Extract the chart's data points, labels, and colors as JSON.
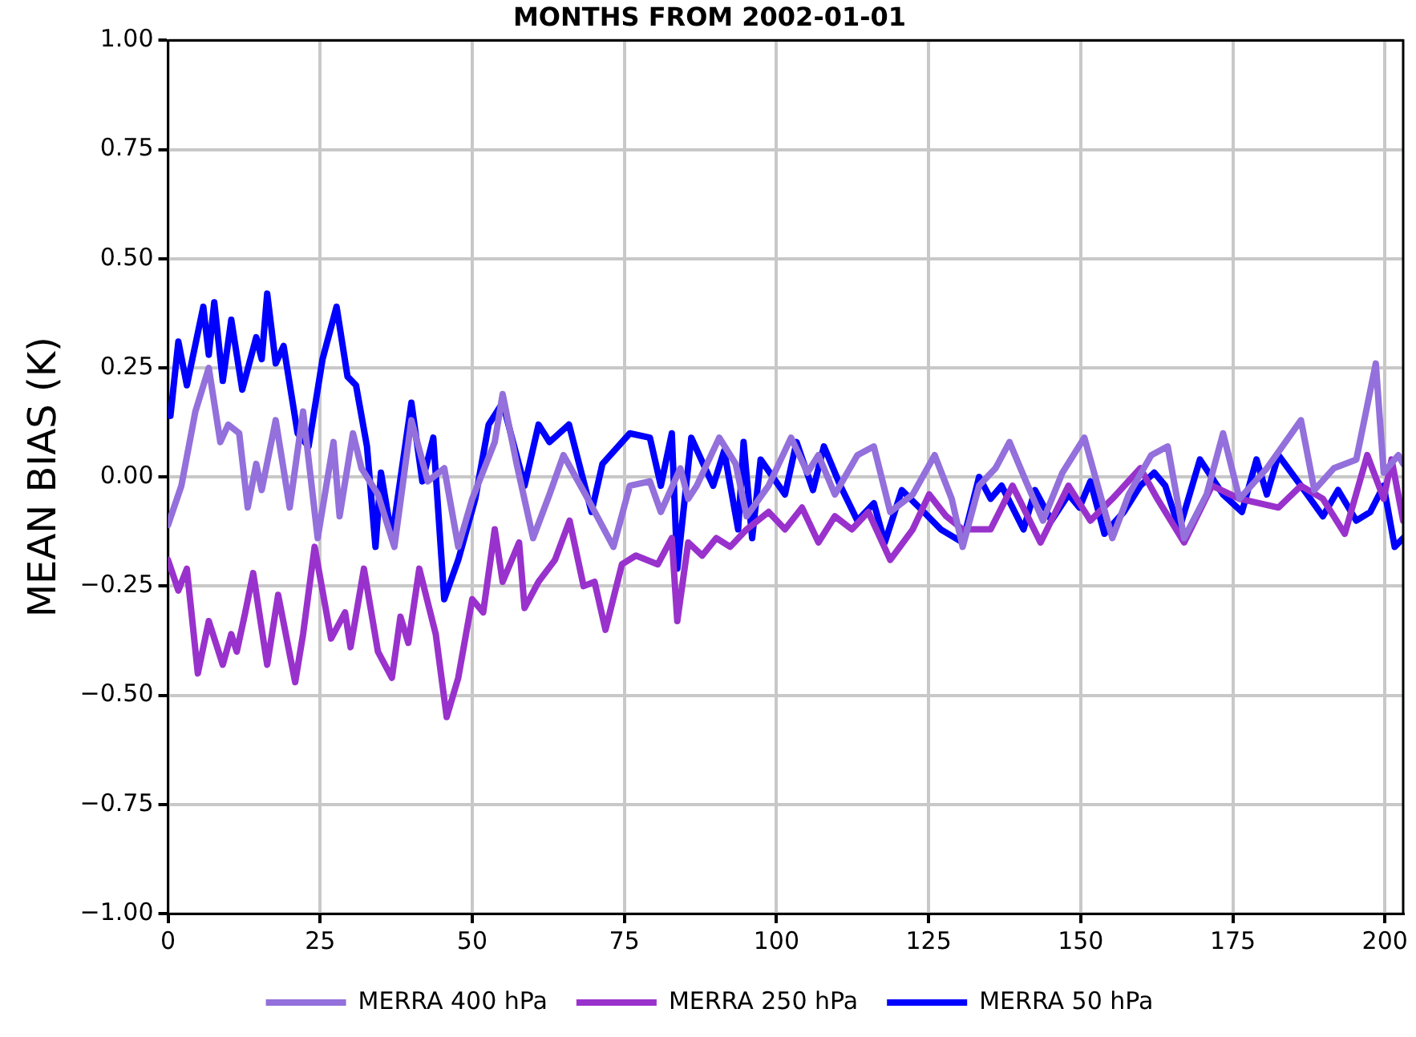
{
  "chart_data": {
    "type": "line",
    "title": "MONTHS FROM 2002-01-01",
    "ylabel": "MEAN BIAS (K)",
    "xlim": [
      0,
      203
    ],
    "xticks": [
      0,
      25,
      50,
      75,
      100,
      125,
      150,
      175,
      200
    ],
    "ylim": [
      -1,
      1
    ],
    "yticks": [
      {
        "value": -1,
        "label": "−1.00"
      },
      {
        "value": -0.75,
        "label": "−0.75"
      },
      {
        "value": -0.5,
        "label": "−0.50"
      },
      {
        "value": -0.25,
        "label": "−0.25"
      },
      {
        "value": 0,
        "label": "0.00"
      },
      {
        "value": 0.25,
        "label": "0.25"
      },
      {
        "value": 0.5,
        "label": "0.50"
      },
      {
        "value": 0.75,
        "label": "0.75"
      },
      {
        "value": 1,
        "label": "1.00"
      }
    ],
    "grid": true,
    "legend": "bottom",
    "marker": "none",
    "line_style": "solid",
    "series": [
      {
        "name": "MERRA 400 hPa",
        "color": "#9370db",
        "x": [
          0,
          2.2,
          4.5,
          6.7,
          8.6,
          9.9,
          11.7,
          13.1,
          14.5,
          15.4,
          17.7,
          20,
          22.2,
          24.6,
          27.2,
          28.2,
          30.4,
          31.8,
          34.5,
          37.2,
          40,
          42.7,
          45.4,
          47.7,
          50,
          53.7,
          55,
          57.3,
          60,
          62.7,
          65,
          68.6,
          73.2,
          75.9,
          79.2,
          81,
          84.2,
          85.5,
          86.9,
          90.6,
          93.3,
          95.1,
          98.7,
          102.4,
          105.1,
          106.9,
          109.6,
          113.3,
          116,
          118.7,
          122.4,
          126,
          128.8,
          130.6,
          133.3,
          136,
          138.3,
          141,
          143.8,
          147,
          150.6,
          153.4,
          155.2,
          157.9,
          161.6,
          164.3,
          167,
          170.7,
          173.4,
          176.1,
          180.6,
          186.2,
          188.4,
          191.6,
          195.3,
          198.5,
          199.8,
          202.2,
          203
        ],
        "values": [
          -0.11,
          -0.02,
          0.15,
          0.25,
          0.08,
          0.12,
          0.1,
          -0.07,
          0.03,
          -0.03,
          0.13,
          -0.07,
          0.15,
          -0.14,
          0.08,
          -0.09,
          0.1,
          0.02,
          -0.04,
          -0.16,
          0.13,
          -0.01,
          0.02,
          -0.16,
          -0.05,
          0.08,
          0.19,
          0.03,
          -0.14,
          -0.04,
          0.05,
          -0.04,
          -0.16,
          -0.02,
          -0.01,
          -0.08,
          0.02,
          -0.05,
          -0.02,
          0.09,
          0.03,
          -0.09,
          -0.02,
          0.09,
          0.01,
          0.05,
          -0.04,
          0.05,
          0.07,
          -0.08,
          -0.04,
          0.05,
          -0.05,
          -0.16,
          -0.02,
          0.02,
          0.08,
          -0.01,
          -0.1,
          0.01,
          0.09,
          -0.05,
          -0.14,
          -0.04,
          0.05,
          0.07,
          -0.14,
          -0.04,
          0.1,
          -0.05,
          0.02,
          0.13,
          -0.03,
          0.02,
          0.04,
          0.26,
          0.01,
          0.05,
          0.03
        ]
      },
      {
        "name": "MERRA 250 hPa",
        "color": "#9932cc",
        "x": [
          0,
          1.7,
          3.1,
          4.9,
          6.7,
          9,
          10.4,
          11.3,
          12.7,
          14,
          16.3,
          18.1,
          20.9,
          22.2,
          24.1,
          26.8,
          29.1,
          30,
          32.2,
          34.5,
          36.8,
          38.2,
          39.5,
          41.3,
          44,
          45.8,
          47.7,
          50,
          51.8,
          53.7,
          55,
          57.7,
          58.6,
          60.9,
          63.6,
          66,
          68.3,
          70.1,
          71.9,
          74.6,
          76.9,
          80.5,
          82.8,
          83.7,
          85.5,
          87.8,
          90.1,
          92.4,
          95.1,
          98.7,
          101.4,
          104.2,
          106.9,
          109.6,
          112.4,
          115.1,
          118.7,
          122.4,
          125.1,
          127.9,
          130.6,
          135.2,
          138.8,
          143.4,
          148,
          151.6,
          155.2,
          159.8,
          162.6,
          167,
          171.6,
          176.1,
          182.5,
          186.2,
          189.8,
          193.4,
          197.1,
          199.8,
          201.1,
          203
        ],
        "values": [
          -0.19,
          -0.26,
          -0.21,
          -0.45,
          -0.33,
          -0.43,
          -0.36,
          -0.4,
          -0.31,
          -0.22,
          -0.43,
          -0.27,
          -0.47,
          -0.36,
          -0.16,
          -0.37,
          -0.31,
          -0.39,
          -0.21,
          -0.4,
          -0.46,
          -0.32,
          -0.38,
          -0.21,
          -0.36,
          -0.55,
          -0.46,
          -0.28,
          -0.31,
          -0.12,
          -0.24,
          -0.15,
          -0.3,
          -0.24,
          -0.19,
          -0.1,
          -0.25,
          -0.24,
          -0.35,
          -0.2,
          -0.18,
          -0.2,
          -0.14,
          -0.33,
          -0.15,
          -0.18,
          -0.14,
          -0.16,
          -0.12,
          -0.08,
          -0.12,
          -0.07,
          -0.15,
          -0.09,
          -0.12,
          -0.08,
          -0.19,
          -0.12,
          -0.04,
          -0.09,
          -0.12,
          -0.12,
          -0.02,
          -0.15,
          -0.02,
          -0.1,
          -0.05,
          0.02,
          -0.05,
          -0.15,
          -0.02,
          -0.05,
          -0.07,
          -0.02,
          -0.05,
          -0.13,
          0.05,
          -0.05,
          0.04,
          -0.1
        ]
      },
      {
        "name": "MERRA 50 hPa",
        "color": "#0000ff",
        "x": [
          0.4,
          1.7,
          3.1,
          5.8,
          6.7,
          7.6,
          9,
          10.4,
          12.2,
          14.5,
          15.4,
          16.3,
          17.7,
          19,
          21.3,
          23.1,
          25.4,
          27.7,
          29.5,
          30.9,
          32.7,
          34.1,
          35,
          36.8,
          40,
          41.8,
          43.6,
          45.4,
          47.7,
          50.5,
          52.7,
          55,
          58.6,
          60.9,
          62.7,
          65.9,
          69.6,
          71.4,
          75.9,
          79.2,
          81,
          82.8,
          83.7,
          86,
          89.6,
          91.4,
          93.7,
          94.6,
          96,
          97.4,
          101.4,
          103.3,
          106,
          107.8,
          110.5,
          113.3,
          116,
          117.8,
          120.6,
          124.2,
          127,
          130.6,
          133.3,
          135.2,
          137,
          140.6,
          142.5,
          145.2,
          148,
          149.8,
          151.6,
          153.9,
          157.1,
          159.8,
          162.1,
          163.9,
          166.2,
          169.6,
          173.4,
          176.5,
          178.9,
          180.6,
          182.5,
          186.2,
          189.8,
          192.3,
          195.3,
          197.6,
          199.8,
          201.6,
          203
        ],
        "values": [
          0.14,
          0.31,
          0.21,
          0.39,
          0.28,
          0.4,
          0.22,
          0.36,
          0.2,
          0.32,
          0.27,
          0.42,
          0.26,
          0.3,
          0.1,
          0.07,
          0.27,
          0.39,
          0.23,
          0.21,
          0.07,
          -0.16,
          0.01,
          -0.14,
          0.17,
          -0.01,
          0.09,
          -0.28,
          -0.19,
          -0.05,
          0.12,
          0.17,
          -0.02,
          0.12,
          0.08,
          0.12,
          -0.08,
          0.03,
          0.1,
          0.09,
          -0.02,
          0.1,
          -0.21,
          0.09,
          -0.02,
          0.06,
          -0.12,
          0.08,
          -0.14,
          0.04,
          -0.04,
          0.08,
          -0.03,
          0.07,
          -0.02,
          -0.1,
          -0.06,
          -0.15,
          -0.03,
          -0.08,
          -0.12,
          -0.15,
          0,
          -0.05,
          -0.02,
          -0.12,
          -0.03,
          -0.1,
          -0.04,
          -0.07,
          -0.01,
          -0.13,
          -0.08,
          -0.02,
          0.01,
          -0.02,
          -0.12,
          0.04,
          -0.04,
          -0.08,
          0.04,
          -0.04,
          0.05,
          -0.02,
          -0.09,
          -0.03,
          -0.1,
          -0.08,
          -0.02,
          -0.16,
          -0.14
        ]
      }
    ]
  }
}
